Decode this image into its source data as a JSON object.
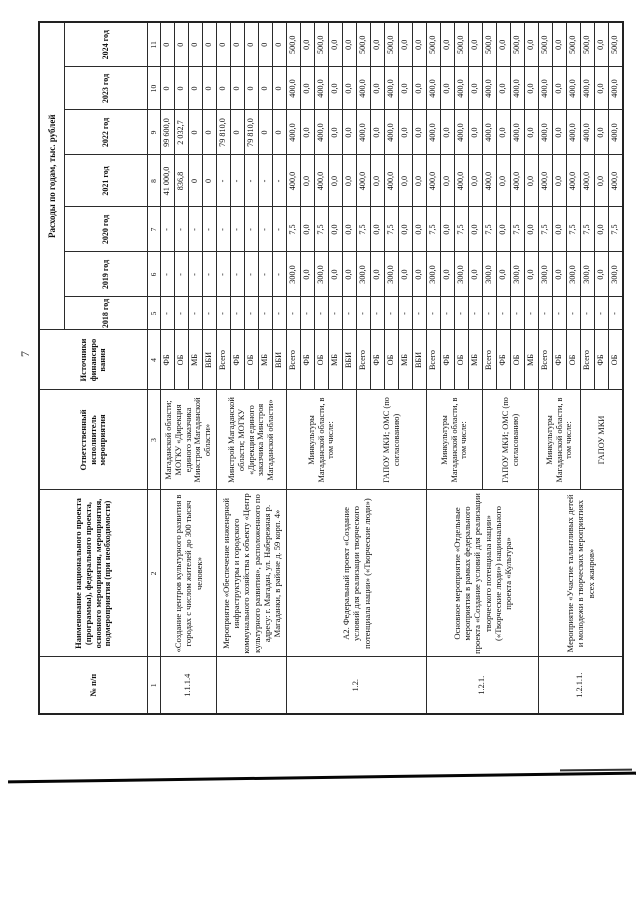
{
  "page": {
    "number": "7"
  },
  "table": {
    "headers": {
      "col1": "№ п/п",
      "col2": "Наименование национального проекта (программы), федерального проекта, основного мероприятия, мероприятия, подмероприятия (при необходимости)",
      "col3": "Ответственный исполнитель мероприятия",
      "col4": "Источники финансиро вания",
      "expenses": "Расходы по годам, тыс. рублей",
      "years": [
        "2018 год",
        "2019 год",
        "2020 год",
        "2021 год",
        "2022 год",
        "2023 год",
        "2024 год"
      ],
      "col_numbers": [
        "1",
        "2",
        "3",
        "4",
        "5",
        "6",
        "7",
        "8",
        "9",
        "10",
        "11"
      ]
    },
    "groups": [
      {
        "num": "1.1.1.4",
        "name": "«Создание центров культурного развития в городах с числом жителей до 300 тысяч человек»",
        "blocks": [
          {
            "responsible": "Магаданской области; МОГКУ «Дирекция единого заказчика Минстроя Магаданской области»",
            "rows": [
              {
                "source": "ФБ",
                "values": [
                  "-",
                  "-",
                  "-",
                  "41 000,0",
                  "99 600,0",
                  "0",
                  "0"
                ]
              },
              {
                "source": "ОБ",
                "values": [
                  "-",
                  "-",
                  "-",
                  "836,8",
                  "2 032,7",
                  "0",
                  "0"
                ]
              },
              {
                "source": "МБ",
                "values": [
                  "-",
                  "-",
                  "-",
                  "0",
                  "0",
                  "0",
                  "0"
                ]
              },
              {
                "source": "ВБИ",
                "values": [
                  "-",
                  "-",
                  "-",
                  "0",
                  "0",
                  "0",
                  "0"
                ]
              }
            ]
          }
        ]
      },
      {
        "num": "",
        "name": "Мероприятие «Обеспечение инженерной инфраструктуры и городского коммунального хозяйства к объекту «Центр культурного развития», расположенного по адресу: г. Магадан, ул. Набережная р. Магаданки, в районе д. 59 корп. 4»",
        "blocks": [
          {
            "responsible": "Минстрой Магаданской области; МОГКУ «Дирекция единого заказчика Минстроя Магаданской области»",
            "rows": [
              {
                "source": "Всего",
                "values": [
                  "-",
                  "-",
                  "-",
                  "-",
                  "79 810,0",
                  "0",
                  "0"
                ]
              },
              {
                "source": "ФБ",
                "values": [
                  "-",
                  "-",
                  "-",
                  "-",
                  "0",
                  "0",
                  "0"
                ]
              },
              {
                "source": "ОБ",
                "values": [
                  "-",
                  "-",
                  "-",
                  "-",
                  "79 810,0",
                  "0",
                  "0"
                ]
              },
              {
                "source": "МБ",
                "values": [
                  "-",
                  "-",
                  "-",
                  "-",
                  "0",
                  "0",
                  "0"
                ]
              },
              {
                "source": "ВБИ",
                "values": [
                  "-",
                  "-",
                  "-",
                  "-",
                  "0",
                  "0",
                  "0"
                ]
              }
            ]
          }
        ]
      },
      {
        "num": "1.2.",
        "name": "А2. Федеральный проект «Создание условий для реализации творческого потенциала нации» («Творческие люди»)",
        "blocks": [
          {
            "responsible": "Минкультуры Магаданской области, в том числе:",
            "rows": [
              {
                "source": "Всего",
                "values": [
                  "-",
                  "300,0",
                  "7,5",
                  "400,0",
                  "400,0",
                  "400,0",
                  "500,0"
                ]
              },
              {
                "source": "ФБ",
                "values": [
                  "-",
                  "0,0",
                  "0,0",
                  "0,0",
                  "0,0",
                  "0,0",
                  "0,0"
                ]
              },
              {
                "source": "ОБ",
                "values": [
                  "-",
                  "300,0",
                  "7,5",
                  "400,0",
                  "400,0",
                  "400,0",
                  "500,0"
                ]
              },
              {
                "source": "МБ",
                "values": [
                  "-",
                  "0,0",
                  "0,0",
                  "0,0",
                  "0,0",
                  "0,0",
                  "0,0"
                ]
              },
              {
                "source": "ВБИ",
                "values": [
                  "-",
                  "0,0",
                  "0,0",
                  "0,0",
                  "0,0",
                  "0,0",
                  "0,0"
                ]
              }
            ]
          },
          {
            "responsible": "ГАПОУ МКИ; ОМС (по согласованию)",
            "rows": [
              {
                "source": "Всего",
                "values": [
                  "-",
                  "300,0",
                  "7,5",
                  "400,0",
                  "400,0",
                  "400,0",
                  "500,0"
                ]
              },
              {
                "source": "ФБ",
                "values": [
                  "-",
                  "0,0",
                  "0,0",
                  "0,0",
                  "0,0",
                  "0,0",
                  "0,0"
                ]
              },
              {
                "source": "ОБ",
                "values": [
                  "-",
                  "300,0",
                  "7,5",
                  "400,0",
                  "400,0",
                  "400,0",
                  "500,0"
                ]
              },
              {
                "source": "МБ",
                "values": [
                  "-",
                  "0,0",
                  "0,0",
                  "0,0",
                  "0,0",
                  "0,0",
                  "0,0"
                ]
              },
              {
                "source": "ВБИ",
                "values": [
                  "-",
                  "0,0",
                  "0,0",
                  "0,0",
                  "0,0",
                  "0,0",
                  "0,0"
                ]
              }
            ]
          }
        ]
      },
      {
        "num": "1.2.1.",
        "name": "Основное мероприятие «Отдельные мероприятия в рамках федерального проекта «Создание условий для реализации творческого потенциала нации» («Творческие люди») национального проекта «Культура»",
        "blocks": [
          {
            "responsible": "Минкультуры Магаданской области, в том числе:",
            "rows": [
              {
                "source": "Всего",
                "values": [
                  "-",
                  "300,0",
                  "7,5",
                  "400,0",
                  "400,0",
                  "400,0",
                  "500,0"
                ]
              },
              {
                "source": "ФБ",
                "values": [
                  "-",
                  "0,0",
                  "0,0",
                  "0,0",
                  "0,0",
                  "0,0",
                  "0,0"
                ]
              },
              {
                "source": "ОБ",
                "values": [
                  "-",
                  "300,0",
                  "7,5",
                  "400,0",
                  "400,0",
                  "400,0",
                  "500,0"
                ]
              },
              {
                "source": "МБ",
                "values": [
                  "-",
                  "0,0",
                  "0,0",
                  "0,0",
                  "0,0",
                  "0,0",
                  "0,0"
                ]
              }
            ]
          },
          {
            "responsible": "ГАПОУ МКИ; ОМС (по согласованию)",
            "rows": [
              {
                "source": "Всего",
                "values": [
                  "-",
                  "300,0",
                  "7,5",
                  "400,0",
                  "400,0",
                  "400,0",
                  "500,0"
                ]
              },
              {
                "source": "ФБ",
                "values": [
                  "-",
                  "0,0",
                  "0,0",
                  "0,0",
                  "0,0",
                  "0,0",
                  "0,0"
                ]
              },
              {
                "source": "ОБ",
                "values": [
                  "-",
                  "300,0",
                  "7,5",
                  "400,0",
                  "400,0",
                  "400,0",
                  "500,0"
                ]
              },
              {
                "source": "МБ",
                "values": [
                  "-",
                  "0,0",
                  "0,0",
                  "0,0",
                  "0,0",
                  "0,0",
                  "0,0"
                ]
              }
            ]
          }
        ]
      },
      {
        "num": "1.2.1.1.",
        "name": "Мероприятие «Участие талантливых детей и молодежи в творческих мероприятиях всех жанров»",
        "blocks": [
          {
            "responsible": "Минкультуры Магаданской области, в том числе:",
            "rows": [
              {
                "source": "Всего",
                "values": [
                  "-",
                  "300,0",
                  "7,5",
                  "400,0",
                  "400,0",
                  "400,0",
                  "500,0"
                ]
              },
              {
                "source": "ФБ",
                "values": [
                  "-",
                  "0,0",
                  "0,0",
                  "0,0",
                  "0,0",
                  "0,0",
                  "0,0"
                ]
              },
              {
                "source": "ОБ",
                "values": [
                  "-",
                  "300,0",
                  "7,5",
                  "400,0",
                  "400,0",
                  "400,0",
                  "500,0"
                ]
              }
            ]
          },
          {
            "responsible": "ГАПОУ МКИ",
            "rows": [
              {
                "source": "Всего",
                "values": [
                  "-",
                  "300,0",
                  "7,5",
                  "400,0",
                  "400,0",
                  "400,0",
                  "500,0"
                ]
              },
              {
                "source": "ФБ",
                "values": [
                  "-",
                  "0,0",
                  "0,0",
                  "0,0",
                  "0,0",
                  "0,0",
                  "0,0"
                ]
              },
              {
                "source": "ОБ",
                "values": [
                  "-",
                  "300,0",
                  "7,5",
                  "400,0",
                  "400,0",
                  "400,0",
                  "500,0"
                ]
              }
            ]
          }
        ]
      }
    ]
  }
}
